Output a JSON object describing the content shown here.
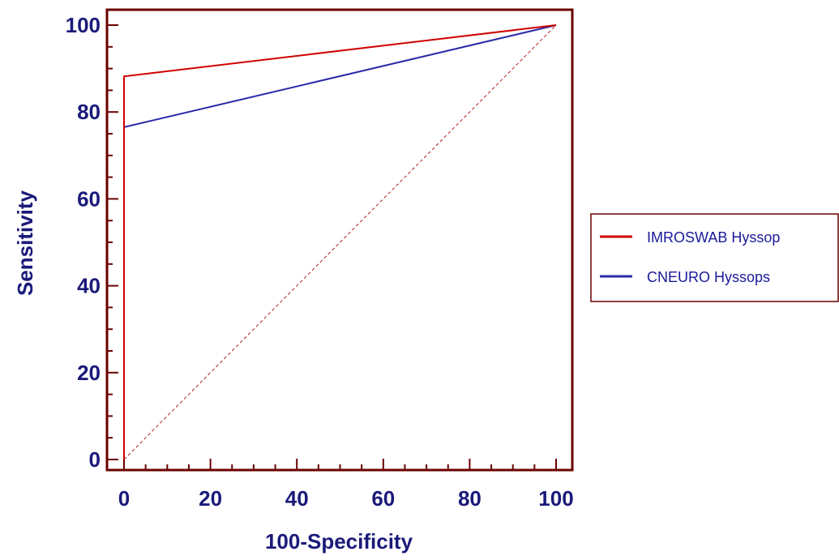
{
  "chart_data": {
    "type": "line",
    "title": "",
    "xlabel": "100-Specificity",
    "ylabel": "Sensitivity",
    "xlim": [
      0,
      100
    ],
    "ylim": [
      0,
      100
    ],
    "x_ticks": [
      "0",
      "20",
      "40",
      "60",
      "80",
      "100"
    ],
    "y_ticks": [
      "0",
      "20",
      "40",
      "60",
      "80",
      "100"
    ],
    "grid": false,
    "legend_position": "right",
    "series": [
      {
        "name": "IMROSWAB Hyssop",
        "color": "#d00000",
        "points": [
          [
            0,
            0
          ],
          [
            0,
            88.2
          ],
          [
            100,
            100
          ]
        ]
      },
      {
        "name": "CNEURO Hyssops",
        "color": "#2a2aa8",
        "points": [
          [
            0,
            0
          ],
          [
            0,
            76.5
          ],
          [
            100,
            100
          ]
        ]
      }
    ],
    "reference_line": {
      "points": [
        [
          0,
          0
        ],
        [
          100,
          100
        ]
      ],
      "style": "dashed",
      "color": "#b02020"
    },
    "colors": {
      "axis": "#6b0000",
      "text": "#1a1a7a"
    }
  }
}
